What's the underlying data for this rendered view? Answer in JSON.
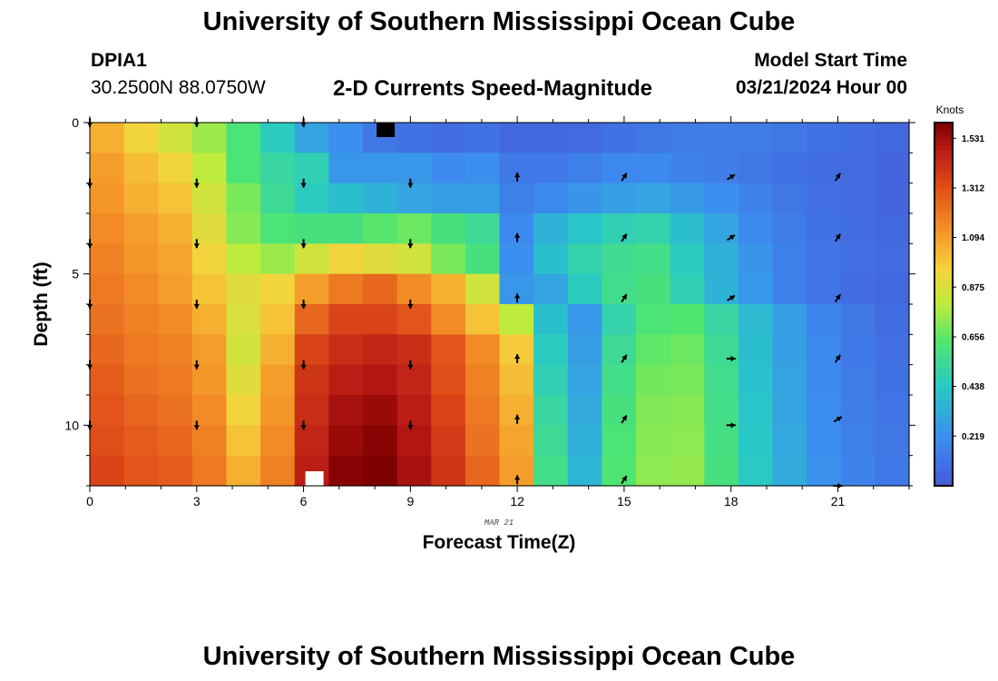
{
  "header": {
    "title": "University of Southern Mississippi Ocean Cube",
    "station_id": "DPIA1",
    "coordinates": "30.2500N  88.0750W",
    "chart_title": "2-D Currents Speed-Magnitude",
    "model_start_label": "Model Start Time",
    "model_start_value": "03/21/2024 Hour 00"
  },
  "footer": {
    "title": "University of Southern Mississippi Ocean Cube"
  },
  "chart_data": {
    "type": "heatmap",
    "title": "2-D Currents Speed-Magnitude",
    "xlabel": "Forecast Time(Z)",
    "ylabel": "Depth (ft)",
    "x_date_label": "MAR 21",
    "xlim": [
      0,
      23
    ],
    "ylim": [
      0,
      12
    ],
    "x_ticks": [
      0,
      3,
      6,
      9,
      12,
      15,
      18,
      21
    ],
    "y_ticks": [
      0,
      5,
      10
    ],
    "hours": [
      0,
      1,
      2,
      3,
      4,
      5,
      6,
      7,
      8,
      9,
      10,
      11,
      12,
      13,
      14,
      15,
      16,
      17,
      18,
      19,
      20,
      21,
      22,
      23
    ],
    "depth_levels": 12,
    "colorbar": {
      "label": "Knots",
      "min": 0,
      "max": 1.6,
      "tick_values": [
        0.219,
        0.438,
        0.656,
        0.875,
        1.094,
        1.312,
        1.531
      ],
      "tick_labels": [
        "0.219",
        "0.438",
        "0.656",
        "0.875",
        "1.094",
        "1.312",
        "1.531"
      ]
    },
    "speed_knots": [
      [
        1.05,
        0.95,
        0.85,
        0.75,
        0.62,
        0.45,
        0.3,
        0.22,
        0.12,
        0.1,
        0.08,
        0.1,
        0.06,
        0.06,
        0.07,
        0.1,
        0.12,
        0.14,
        0.15,
        0.14,
        0.12,
        0.1,
        0.08,
        0.06
      ],
      [
        1.1,
        1.02,
        0.95,
        0.8,
        0.62,
        0.52,
        0.48,
        0.25,
        0.25,
        0.25,
        0.2,
        0.22,
        0.13,
        0.13,
        0.16,
        0.19,
        0.2,
        0.17,
        0.15,
        0.12,
        0.1,
        0.08,
        0.07,
        0.05
      ],
      [
        1.12,
        1.05,
        1.0,
        0.85,
        0.7,
        0.55,
        0.45,
        0.4,
        0.35,
        0.3,
        0.28,
        0.27,
        0.16,
        0.2,
        0.24,
        0.28,
        0.3,
        0.26,
        0.22,
        0.17,
        0.12,
        0.09,
        0.07,
        0.05
      ],
      [
        1.15,
        1.1,
        1.05,
        0.9,
        0.72,
        0.62,
        0.6,
        0.6,
        0.65,
        0.68,
        0.6,
        0.55,
        0.2,
        0.35,
        0.42,
        0.48,
        0.5,
        0.4,
        0.3,
        0.2,
        0.14,
        0.1,
        0.08,
        0.06
      ],
      [
        1.18,
        1.12,
        1.08,
        0.95,
        0.8,
        0.75,
        0.85,
        0.95,
        0.9,
        0.85,
        0.7,
        0.6,
        0.22,
        0.4,
        0.5,
        0.56,
        0.58,
        0.45,
        0.34,
        0.24,
        0.16,
        0.11,
        0.09,
        0.07
      ],
      [
        1.2,
        1.15,
        1.1,
        1.0,
        0.9,
        0.95,
        1.1,
        1.2,
        1.25,
        1.15,
        1.05,
        0.85,
        0.25,
        0.3,
        0.45,
        0.57,
        0.6,
        0.48,
        0.35,
        0.25,
        0.16,
        0.11,
        0.08,
        0.06
      ],
      [
        1.22,
        1.18,
        1.15,
        1.05,
        0.88,
        1.0,
        1.25,
        1.35,
        1.35,
        1.3,
        1.15,
        1.0,
        0.8,
        0.4,
        0.25,
        0.5,
        0.62,
        0.64,
        0.52,
        0.38,
        0.27,
        0.18,
        0.12,
        0.08
      ],
      [
        1.25,
        1.2,
        1.18,
        1.1,
        0.85,
        1.05,
        1.35,
        1.42,
        1.45,
        1.42,
        1.3,
        1.15,
        0.98,
        0.45,
        0.28,
        0.55,
        0.66,
        0.68,
        0.55,
        0.4,
        0.28,
        0.19,
        0.13,
        0.09
      ],
      [
        1.28,
        1.22,
        1.2,
        1.12,
        0.9,
        1.1,
        1.4,
        1.48,
        1.5,
        1.45,
        1.32,
        1.18,
        1.02,
        0.48,
        0.3,
        0.58,
        0.69,
        0.7,
        0.57,
        0.41,
        0.29,
        0.2,
        0.14,
        0.1
      ],
      [
        1.3,
        1.25,
        1.22,
        1.15,
        0.95,
        1.12,
        1.42,
        1.52,
        1.55,
        1.48,
        1.35,
        1.2,
        1.05,
        0.52,
        0.32,
        0.6,
        0.71,
        0.72,
        0.58,
        0.42,
        0.3,
        0.21,
        0.15,
        0.11
      ],
      [
        1.32,
        1.28,
        1.25,
        1.18,
        1.0,
        1.15,
        1.45,
        1.55,
        1.58,
        1.5,
        1.38,
        1.22,
        1.08,
        0.55,
        0.34,
        0.62,
        0.72,
        0.73,
        0.59,
        0.43,
        0.31,
        0.22,
        0.16,
        0.12
      ],
      [
        1.35,
        1.3,
        1.28,
        1.2,
        1.05,
        1.18,
        1.48,
        1.58,
        1.6,
        1.52,
        1.4,
        1.25,
        1.1,
        0.58,
        0.36,
        0.63,
        0.73,
        0.74,
        0.6,
        0.44,
        0.32,
        0.23,
        0.17,
        0.13
      ]
    ],
    "vectors": [
      {
        "hour": 0,
        "depth": 0,
        "dir": "down"
      },
      {
        "hour": 3,
        "depth": 0,
        "dir": "down"
      },
      {
        "hour": 6,
        "depth": 0,
        "dir": "down"
      },
      {
        "hour": 0,
        "depth": 2,
        "dir": "down"
      },
      {
        "hour": 3,
        "depth": 2,
        "dir": "down"
      },
      {
        "hour": 6,
        "depth": 2,
        "dir": "down"
      },
      {
        "hour": 9,
        "depth": 2,
        "dir": "down"
      },
      {
        "hour": 12,
        "depth": 1.8,
        "dir": "up"
      },
      {
        "hour": 15,
        "depth": 1.8,
        "dir": "up-right"
      },
      {
        "hour": 18,
        "depth": 1.8,
        "dir": "right-up"
      },
      {
        "hour": 21,
        "depth": 1.8,
        "dir": "up-right"
      },
      {
        "hour": 0,
        "depth": 4,
        "dir": "down"
      },
      {
        "hour": 3,
        "depth": 4,
        "dir": "down"
      },
      {
        "hour": 6,
        "depth": 4,
        "dir": "down"
      },
      {
        "hour": 9,
        "depth": 4,
        "dir": "down"
      },
      {
        "hour": 12,
        "depth": 3.8,
        "dir": "up"
      },
      {
        "hour": 15,
        "depth": 3.8,
        "dir": "up-right"
      },
      {
        "hour": 18,
        "depth": 3.8,
        "dir": "right-up"
      },
      {
        "hour": 21,
        "depth": 3.8,
        "dir": "up-right"
      },
      {
        "hour": 0,
        "depth": 6,
        "dir": "down"
      },
      {
        "hour": 3,
        "depth": 6,
        "dir": "down"
      },
      {
        "hour": 6,
        "depth": 6,
        "dir": "down"
      },
      {
        "hour": 9,
        "depth": 6,
        "dir": "down"
      },
      {
        "hour": 12,
        "depth": 5.8,
        "dir": "up"
      },
      {
        "hour": 15,
        "depth": 5.8,
        "dir": "up-right"
      },
      {
        "hour": 18,
        "depth": 5.8,
        "dir": "right-up"
      },
      {
        "hour": 21,
        "depth": 5.8,
        "dir": "up-right"
      },
      {
        "hour": 0,
        "depth": 8,
        "dir": "down"
      },
      {
        "hour": 3,
        "depth": 8,
        "dir": "down"
      },
      {
        "hour": 6,
        "depth": 8,
        "dir": "down"
      },
      {
        "hour": 9,
        "depth": 8,
        "dir": "down"
      },
      {
        "hour": 12,
        "depth": 7.8,
        "dir": "up"
      },
      {
        "hour": 15,
        "depth": 7.8,
        "dir": "up-right"
      },
      {
        "hour": 18,
        "depth": 7.8,
        "dir": "right"
      },
      {
        "hour": 21,
        "depth": 7.8,
        "dir": "up-right"
      },
      {
        "hour": 0,
        "depth": 10,
        "dir": "down"
      },
      {
        "hour": 3,
        "depth": 10,
        "dir": "down"
      },
      {
        "hour": 6,
        "depth": 10,
        "dir": "down"
      },
      {
        "hour": 9,
        "depth": 10,
        "dir": "down"
      },
      {
        "hour": 12,
        "depth": 9.8,
        "dir": "up"
      },
      {
        "hour": 15,
        "depth": 9.8,
        "dir": "up-right"
      },
      {
        "hour": 18,
        "depth": 10,
        "dir": "right"
      },
      {
        "hour": 21,
        "depth": 9.8,
        "dir": "right-up"
      },
      {
        "hour": 12,
        "depth": 11.8,
        "dir": "up"
      },
      {
        "hour": 15,
        "depth": 11.8,
        "dir": "up-right"
      },
      {
        "hour": 21,
        "depth": 12,
        "dir": "right"
      }
    ],
    "markers": [
      {
        "type": "black-square",
        "hour": 8,
        "depth": 0
      },
      {
        "type": "white-square",
        "hour": 6,
        "depth": 12
      }
    ]
  }
}
